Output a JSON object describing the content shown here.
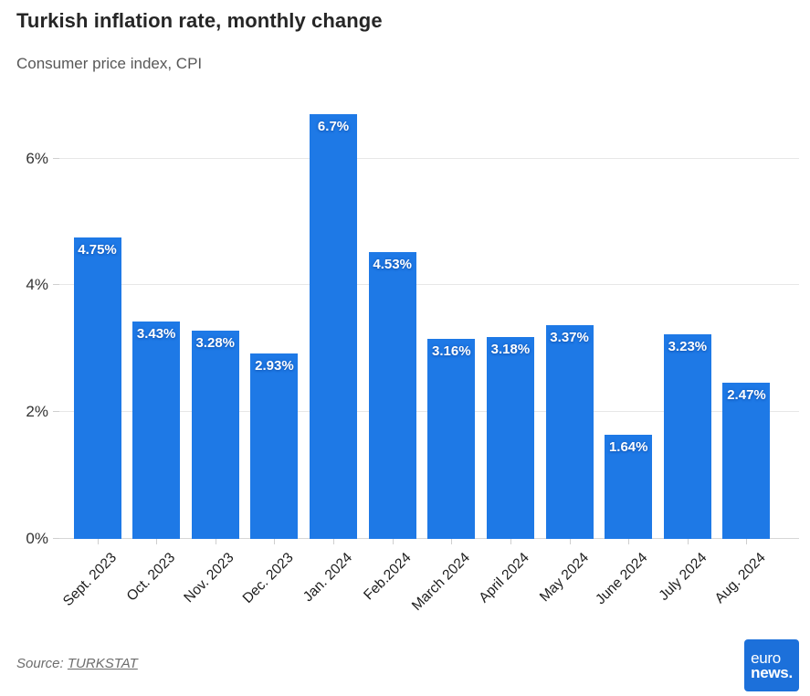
{
  "header": {
    "title": "Turkish inflation rate, monthly change",
    "subtitle": "Consumer price index, CPI"
  },
  "chart_data": {
    "type": "bar",
    "title": "Turkish inflation rate, monthly change",
    "subtitle": "Consumer price index, CPI",
    "categories": [
      "Sept. 2023",
      "Oct. 2023",
      "Nov. 2023",
      "Dec. 2023",
      "Jan. 2024",
      "Feb.2024",
      "March 2024",
      "April 2024",
      "May 2024",
      "June 2024",
      "July 2024",
      "Aug. 2024"
    ],
    "values": [
      4.75,
      3.43,
      3.28,
      2.93,
      6.7,
      4.53,
      3.16,
      3.18,
      3.37,
      1.64,
      3.23,
      2.47
    ],
    "bar_labels": [
      "4.75%",
      "3.43%",
      "3.28%",
      "2.93%",
      "6.7%",
      "4.53%",
      "3.16%",
      "3.18%",
      "3.37%",
      "1.64%",
      "3.23%",
      "2.47%"
    ],
    "y_ticks": {
      "values": [
        0,
        2,
        4,
        6
      ],
      "labels": [
        "0%",
        "2%",
        "4%",
        "6%"
      ]
    },
    "ylim": [
      0,
      7.06
    ],
    "xlabel": "",
    "ylabel": "",
    "grid": "horizontal",
    "legend": "none",
    "bar_color": "#1e79e6",
    "bar_label_color": "#ffffff"
  },
  "footer": {
    "source_prefix": "Source: ",
    "source_link": "TURKSTAT"
  },
  "logo": {
    "line1": "euro",
    "line2": "news.",
    "bg_color": "#1c70da",
    "text_color": "#ffffff"
  }
}
